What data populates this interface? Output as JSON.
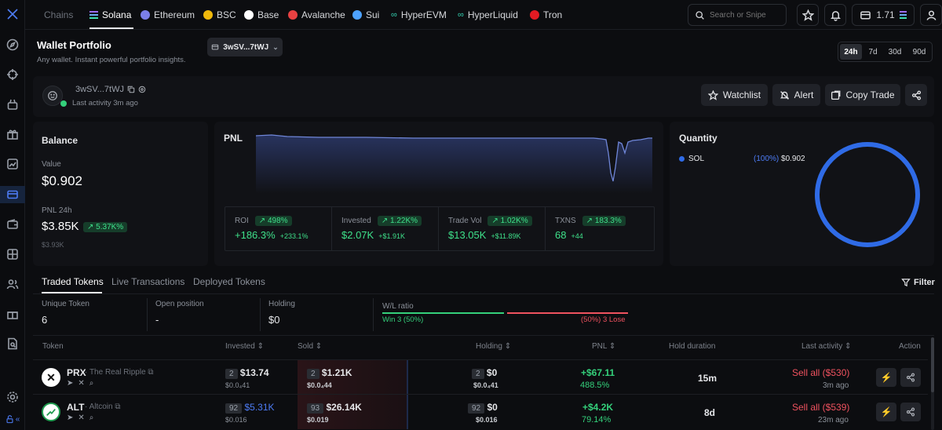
{
  "topbar": {
    "chains_label": "Chains",
    "chains": [
      {
        "label": "Solana",
        "color": "#8a6cf0"
      },
      {
        "label": "Ethereum",
        "color": "#7b7fe8"
      },
      {
        "label": "BSC",
        "color": "#f0b90b"
      },
      {
        "label": "Base",
        "color": "#ffffff"
      },
      {
        "label": "Avalanche",
        "color": "#e84142"
      },
      {
        "label": "Sui",
        "color": "#4da2ff"
      },
      {
        "label": "HyperEVM",
        "color": "#33d1b0"
      },
      {
        "label": "HyperLiquid",
        "color": "#33d1b0"
      },
      {
        "label": "Tron",
        "color": "#e31b23"
      }
    ],
    "search_placeholder": "Search or Snipe",
    "wallet_balance": "1.71"
  },
  "header": {
    "title": "Wallet Portfolio",
    "subtitle": "Any wallet. Instant powerful portfolio insights.",
    "wallet_selector": "3wSV...7tWJ",
    "timeframes": [
      "24h",
      "7d",
      "30d",
      "90d"
    ],
    "active_timeframe": "24h"
  },
  "profile": {
    "address": "3wSV...7tWJ",
    "last_activity": "Last activity 3m ago",
    "buttons": {
      "watchlist": "Watchlist",
      "alert": "Alert",
      "copy_trade": "Copy Trade"
    }
  },
  "balance": {
    "title": "Balance",
    "value_label": "Value",
    "value": "$0.902",
    "pnl_label": "PNL 24h",
    "pnl_value": "$3.85K",
    "pnl_change": "5.37K%",
    "pnl_sub": "$3.93K"
  },
  "pnl": {
    "title": "PNL",
    "stats": [
      {
        "label": "ROI",
        "badge": "498%",
        "value": "+186.3%",
        "sub": "+233.1%"
      },
      {
        "label": "Invested",
        "badge": "1.22K%",
        "value": "$2.07K",
        "sub": "+$1.91K"
      },
      {
        "label": "Trade Vol",
        "badge": "1.02K%",
        "value": "$13.05K",
        "sub": "+$11.89K"
      },
      {
        "label": "TXNS",
        "badge": "183.3%",
        "value": "68",
        "sub": "+44"
      }
    ]
  },
  "quantity": {
    "title": "Quantity",
    "legend": {
      "name": "SOL",
      "pct": "(100%)",
      "value": "$0.902"
    },
    "share": 1.0,
    "color": "#2f6be6"
  },
  "tabs": {
    "items": [
      "Traded Tokens",
      "Live Transactions",
      "Deployed Tokens"
    ],
    "filter": "Filter"
  },
  "summary": {
    "unique_label": "Unique Token",
    "unique_value": "6",
    "open_label": "Open position",
    "open_value": "-",
    "holding_label": "Holding",
    "holding_value": "$0",
    "wl_label": "W/L ratio",
    "win": "Win 3 (50%)",
    "lose": "(50%) 3 Lose",
    "win_share": 0.5
  },
  "table": {
    "headers": {
      "token": "Token",
      "invested": "Invested",
      "sold": "Sold",
      "holding": "Holding",
      "pnl": "PNL",
      "duration": "Hold duration",
      "last": "Last activity",
      "action": "Action"
    },
    "rows": [
      {
        "symbol": "PRX",
        "name": "The Real Ripple",
        "inv_count": "2",
        "invested": "$13.74",
        "inv_sub": "$0.0₄41",
        "sold_count": "2",
        "sold": "$1.21K",
        "sold_sub": "$0.0₄44",
        "hold_count": "2",
        "holding": "$0",
        "hold_sub": "$0.0₄41",
        "pnl": "+$67.11",
        "pnl_pct": "488.5%",
        "duration": "15m",
        "sell": "Sell all ($530)",
        "last": "3m ago"
      },
      {
        "symbol": "ALT",
        "name": "Altcoin",
        "inv_count": "92",
        "invested": "$5.31K",
        "inv_sub": "$0.016",
        "sold_count": "93",
        "sold": "$26.14K",
        "sold_sub": "$0.019",
        "hold_count": "92",
        "holding": "$0",
        "hold_sub": "$0.016",
        "pnl": "+$4.2K",
        "pnl_pct": "79.14%",
        "duration": "8d",
        "sell": "Sell all ($539)",
        "last": "23m ago"
      }
    ]
  }
}
